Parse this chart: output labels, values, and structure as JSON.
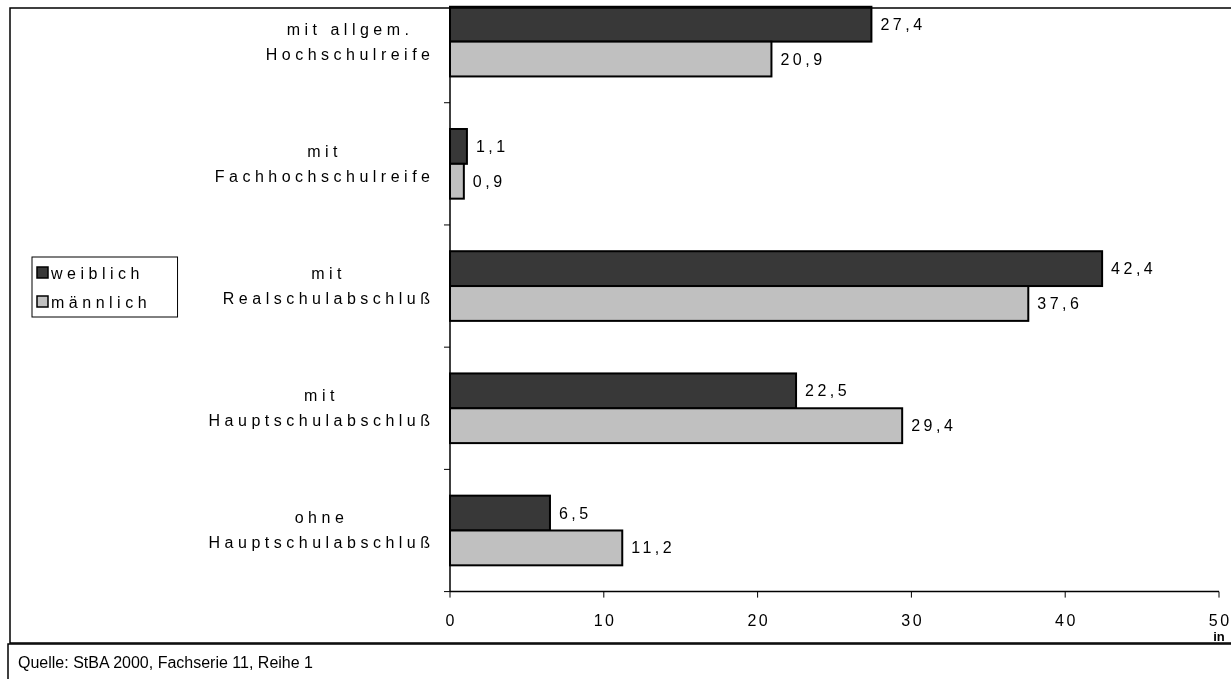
{
  "chart_data": {
    "type": "bar",
    "orientation": "horizontal",
    "categories": [
      "mit allgem. Hochschulreife",
      "mit Fachhochschulreife",
      "mit Realschulabschluß",
      "mit Hauptschulabschluß",
      "ohne Hauptschulabschluß"
    ],
    "series": [
      {
        "name": "weiblich",
        "color": "#383838",
        "values": [
          27.4,
          1.1,
          42.4,
          22.5,
          6.5
        ],
        "value_labels": [
          "27,4",
          "1,1",
          "42,4",
          "22,5",
          "6,5"
        ]
      },
      {
        "name": "männlich",
        "color": "#c0c0c0",
        "values": [
          20.9,
          0.9,
          37.6,
          29.4,
          11.2
        ],
        "value_labels": [
          "20,9",
          "0,9",
          "37,6",
          "29,4",
          "11,2"
        ]
      }
    ],
    "xlim": [
      0,
      50
    ],
    "xticks": [
      0,
      10,
      20,
      30,
      40,
      50
    ],
    "xlabel": "in",
    "legend": "left",
    "annotations": [
      "Quelle: StBA 2000, Fachserie 11, Reihe 1"
    ]
  }
}
